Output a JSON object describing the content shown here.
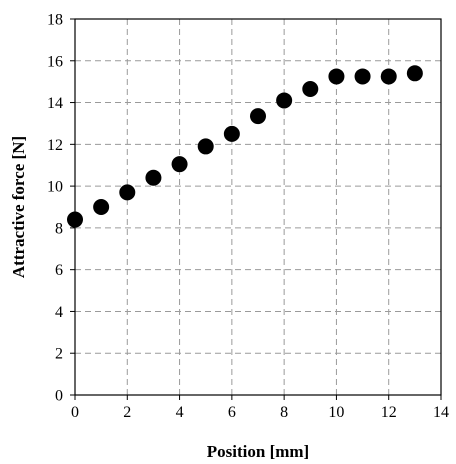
{
  "chart_data": {
    "type": "scatter",
    "title": "",
    "xlabel": "Position [mm]",
    "ylabel": "Attractive force [N]",
    "xlim": [
      0,
      14
    ],
    "ylim": [
      0,
      18
    ],
    "xticks": [
      0,
      2,
      4,
      6,
      8,
      10,
      12,
      14
    ],
    "yticks": [
      0,
      2,
      4,
      6,
      8,
      10,
      12,
      14,
      16,
      18
    ],
    "grid": true,
    "marker_color": "#000000",
    "series": [
      {
        "x": [
          0,
          1,
          2,
          3,
          4,
          5,
          6,
          7,
          8,
          9,
          10,
          11,
          12,
          13
        ],
        "y": [
          8.4,
          9.0,
          9.7,
          10.4,
          11.05,
          11.9,
          12.5,
          13.35,
          14.1,
          14.65,
          15.25,
          15.25,
          15.25,
          15.4
        ]
      }
    ]
  }
}
